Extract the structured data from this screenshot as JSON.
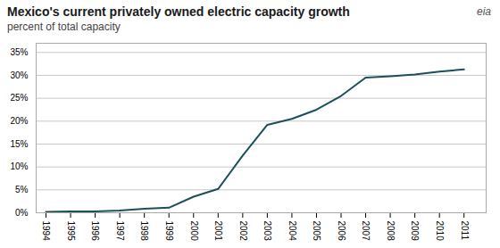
{
  "chart_data": {
    "type": "line",
    "title": "Mexico's current privately owned electric capacity growth",
    "subtitle": "percent of total capacity",
    "annotations": [
      "eia"
    ],
    "x": [
      1994,
      1995,
      1996,
      1997,
      1998,
      1999,
      2000,
      2001,
      2002,
      2003,
      2004,
      2005,
      2006,
      2007,
      2008,
      2009,
      2010,
      2011
    ],
    "values": [
      0.2,
      0.3,
      0.3,
      0.5,
      0.9,
      1.1,
      3.5,
      5.2,
      12.5,
      19.2,
      20.5,
      22.5,
      25.5,
      29.5,
      29.8,
      30.2,
      30.8,
      31.3
    ],
    "color": "#1c4f5a",
    "xlim": [
      1993.6,
      2011.9
    ],
    "xticks": [
      1994,
      1995,
      1996,
      1997,
      1998,
      1999,
      2000,
      2001,
      2002,
      2003,
      2004,
      2005,
      2006,
      2007,
      2008,
      2009,
      2010,
      2011
    ],
    "ylim": [
      0,
      37
    ],
    "yticks": [
      {
        "value": 0,
        "label": "0%"
      },
      {
        "value": 5,
        "label": "5%"
      },
      {
        "value": 10,
        "label": "10%"
      },
      {
        "value": 15,
        "label": "15%"
      },
      {
        "value": 20,
        "label": "20%"
      },
      {
        "value": 25,
        "label": "25%"
      },
      {
        "value": 30,
        "label": "30%"
      },
      {
        "value": 35,
        "label": "35%"
      }
    ],
    "grid": true
  }
}
